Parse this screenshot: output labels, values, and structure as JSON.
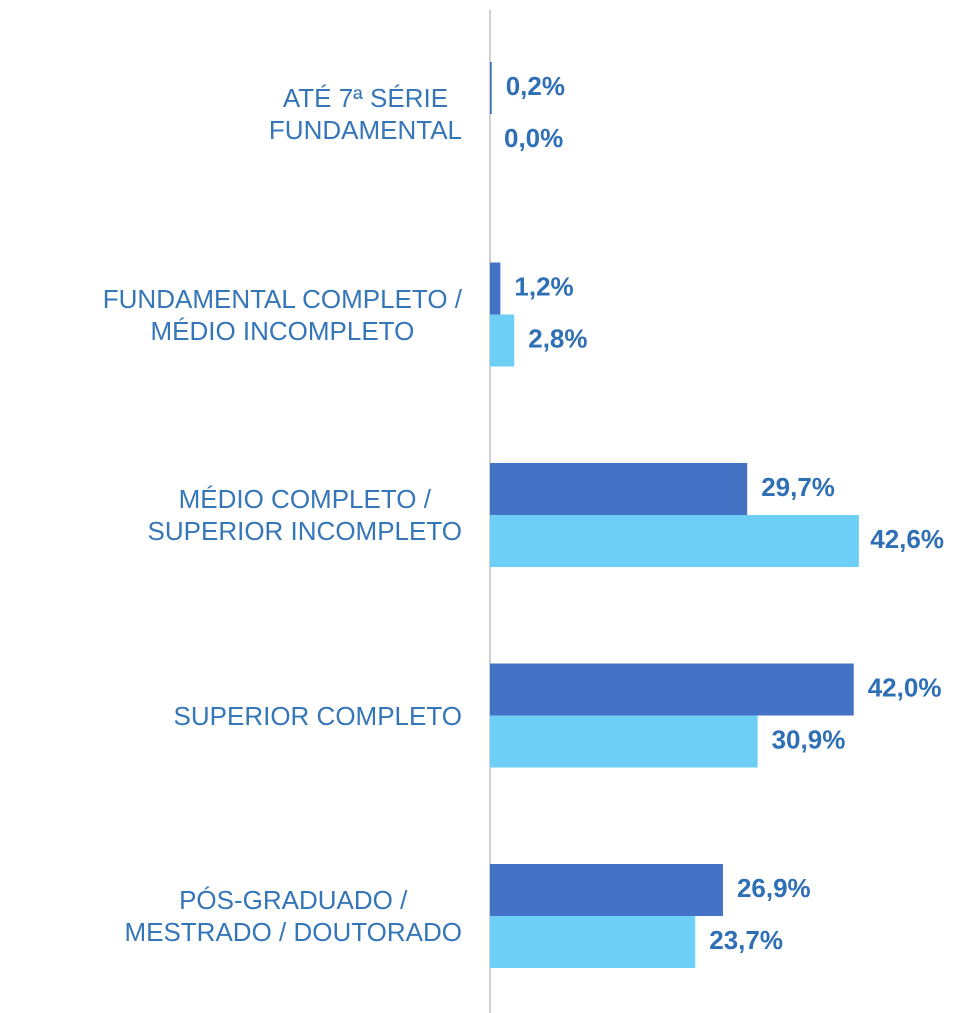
{
  "chart_data": {
    "type": "bar",
    "orientation": "horizontal",
    "categories": [
      "ATÉ 7ª SÉRIE\nFUNDAMENTAL",
      "FUNDAMENTAL COMPLETO /\nMÉDIO INCOMPLETO",
      "MÉDIO COMPLETO /\nSUPERIOR INCOMPLETO",
      "SUPERIOR COMPLETO",
      "PÓS-GRADUADO /\nMESTRADO / DOUTORADO"
    ],
    "series": [
      {
        "color": "#4472c4",
        "values": [
          0.2,
          1.2,
          29.7,
          42.0,
          26.9
        ],
        "value_labels": [
          "0,2%",
          "1,2%",
          "29,7%",
          "42,0%",
          "26,9%"
        ]
      },
      {
        "color": "#6dcff6",
        "values": [
          0.0,
          2.8,
          42.6,
          30.9,
          23.7
        ],
        "value_labels": [
          "0,0%",
          "2,8%",
          "42,6%",
          "30,9%",
          "23,7%"
        ]
      }
    ]
  }
}
